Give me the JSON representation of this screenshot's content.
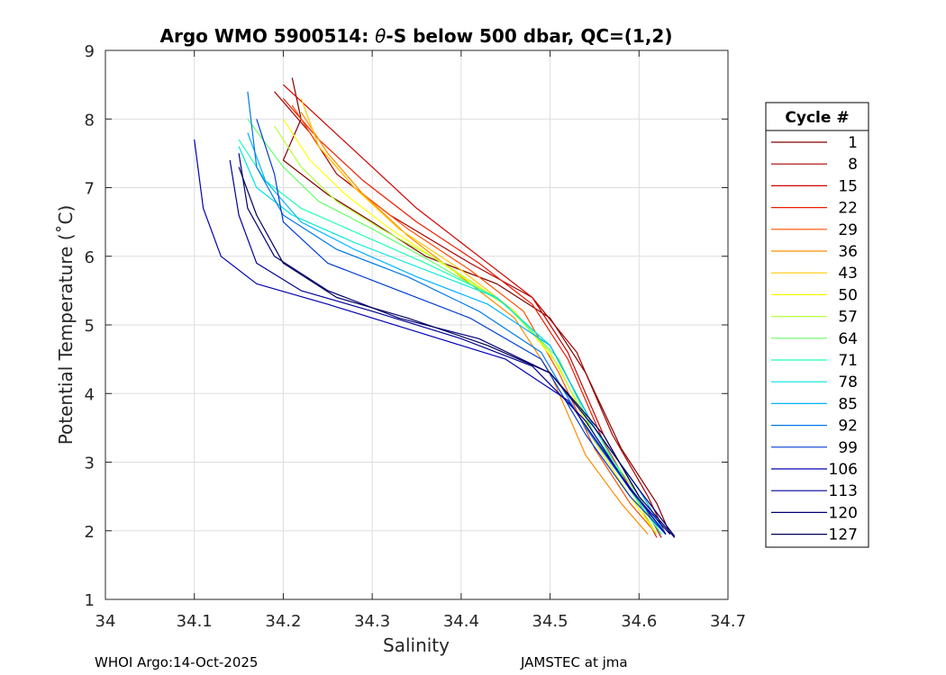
{
  "chart_data": {
    "type": "line",
    "title": "Argo WMO 5900514: θ-S below 500 dbar,  QC=(1,2)",
    "title_parts": {
      "prefix": "Argo WMO 5900514: ",
      "theta": "θ",
      "suffix": "-S below 500 dbar,  QC=(1,2)"
    },
    "xlabel": "Salinity",
    "ylabel": "Potential Temperature (˚C)",
    "xlim": [
      34.0,
      34.7
    ],
    "ylim": [
      1,
      9
    ],
    "xticks": [
      34.0,
      34.1,
      34.2,
      34.3,
      34.4,
      34.5,
      34.6,
      34.7
    ],
    "xtick_labels": [
      "34",
      "34.1",
      "34.2",
      "34.3",
      "34.4",
      "34.5",
      "34.6",
      "34.7"
    ],
    "yticks": [
      1,
      2,
      3,
      4,
      5,
      6,
      7,
      8,
      9
    ],
    "ytick_labels": [
      "1",
      "2",
      "3",
      "4",
      "5",
      "6",
      "7",
      "8",
      "9"
    ],
    "grid": true,
    "legend_title": "Cycle #",
    "legend_position": "right",
    "series": [
      {
        "name": "1",
        "color": "#800000",
        "x": [
          34.21,
          34.22,
          34.2,
          34.25,
          34.3,
          34.36,
          34.44,
          34.5,
          34.54,
          34.58,
          34.62,
          34.635
        ],
        "y": [
          8.6,
          8.0,
          7.4,
          6.9,
          6.5,
          6.0,
          5.6,
          5.1,
          4.3,
          3.2,
          2.4,
          1.95
        ]
      },
      {
        "name": "8",
        "color": "#a80000",
        "x": [
          34.19,
          34.23,
          34.26,
          34.32,
          34.41,
          34.48,
          34.53,
          34.57,
          34.61,
          34.63
        ],
        "y": [
          8.4,
          7.8,
          7.2,
          6.6,
          5.9,
          5.4,
          4.6,
          3.4,
          2.5,
          1.95
        ]
      },
      {
        "name": "15",
        "color": "#d00000",
        "x": [
          34.2,
          34.25,
          34.3,
          34.35,
          34.42,
          34.48,
          34.52,
          34.56,
          34.6,
          34.625
        ],
        "y": [
          8.5,
          7.9,
          7.3,
          6.7,
          6.0,
          5.4,
          4.6,
          3.4,
          2.5,
          1.9
        ]
      },
      {
        "name": "22",
        "color": "#f01c00",
        "x": [
          34.2,
          34.24,
          34.29,
          34.35,
          34.42,
          34.48,
          34.52,
          34.56,
          34.6,
          34.62
        ],
        "y": [
          8.3,
          7.7,
          7.1,
          6.5,
          5.9,
          5.3,
          4.5,
          3.3,
          2.4,
          1.9
        ]
      },
      {
        "name": "29",
        "color": "#ff5000",
        "x": [
          34.21,
          34.24,
          34.28,
          34.34,
          34.41,
          34.47,
          34.51,
          34.55,
          34.59,
          34.62
        ],
        "y": [
          8.2,
          7.6,
          7.0,
          6.4,
          5.8,
          5.2,
          4.3,
          3.2,
          2.4,
          1.95
        ]
      },
      {
        "name": "36",
        "color": "#ff8c00",
        "x": [
          34.22,
          34.25,
          34.29,
          34.34,
          34.4,
          34.46,
          34.5,
          34.54,
          34.58,
          34.61
        ],
        "y": [
          8.1,
          7.5,
          6.9,
          6.3,
          5.7,
          5.1,
          4.3,
          3.1,
          2.4,
          1.95
        ]
      },
      {
        "name": "43",
        "color": "#ffc800",
        "x": [
          34.22,
          34.24,
          34.28,
          34.33,
          34.4,
          34.46,
          34.51,
          34.55,
          34.59,
          34.62
        ],
        "y": [
          8.3,
          7.6,
          7.0,
          6.4,
          5.8,
          5.2,
          4.4,
          3.3,
          2.5,
          1.95
        ]
      },
      {
        "name": "50",
        "color": "#ffff00",
        "x": [
          34.2,
          34.23,
          34.27,
          34.32,
          34.39,
          34.46,
          34.51,
          34.55,
          34.59,
          34.62
        ],
        "y": [
          8.0,
          7.4,
          6.9,
          6.4,
          5.8,
          5.2,
          4.4,
          3.3,
          2.5,
          1.95
        ]
      },
      {
        "name": "57",
        "color": "#b4ff3c",
        "x": [
          34.19,
          34.22,
          34.26,
          34.31,
          34.38,
          34.45,
          34.5,
          34.55,
          34.59,
          34.62
        ],
        "y": [
          7.9,
          7.3,
          6.8,
          6.4,
          5.9,
          5.3,
          4.6,
          3.4,
          2.6,
          1.95
        ]
      },
      {
        "name": "64",
        "color": "#64ff64",
        "x": [
          34.16,
          34.2,
          34.24,
          34.3,
          34.37,
          34.45,
          34.51,
          34.55,
          34.6,
          34.625
        ],
        "y": [
          8.0,
          7.3,
          6.8,
          6.4,
          5.9,
          5.3,
          4.5,
          3.4,
          2.5,
          1.95
        ]
      },
      {
        "name": "71",
        "color": "#1effb4",
        "x": [
          34.15,
          34.18,
          34.22,
          34.29,
          34.36,
          34.44,
          34.5,
          34.55,
          34.59,
          34.625
        ],
        "y": [
          7.7,
          7.1,
          6.7,
          6.3,
          5.9,
          5.4,
          4.7,
          3.5,
          2.6,
          1.95
        ]
      },
      {
        "name": "78",
        "color": "#00e6dc",
        "x": [
          34.15,
          34.17,
          34.21,
          34.28,
          34.36,
          34.44,
          34.5,
          34.55,
          34.6,
          34.63
        ],
        "y": [
          7.6,
          7.0,
          6.6,
          6.2,
          5.8,
          5.4,
          4.7,
          3.5,
          2.6,
          1.95
        ]
      },
      {
        "name": "85",
        "color": "#00b4ff",
        "x": [
          34.16,
          34.18,
          34.22,
          34.28,
          34.35,
          34.43,
          34.5,
          34.55,
          34.6,
          34.63
        ],
        "y": [
          7.8,
          7.1,
          6.5,
          6.1,
          5.7,
          5.3,
          4.7,
          3.5,
          2.6,
          1.95
        ]
      },
      {
        "name": "92",
        "color": "#0078e6",
        "x": [
          34.16,
          34.17,
          34.2,
          34.26,
          34.34,
          34.42,
          34.49,
          34.54,
          34.59,
          34.63
        ],
        "y": [
          8.4,
          7.3,
          6.6,
          6.1,
          5.7,
          5.2,
          4.6,
          3.5,
          2.6,
          1.95
        ]
      },
      {
        "name": "99",
        "color": "#003cd2",
        "x": [
          34.17,
          34.19,
          34.2,
          34.25,
          34.33,
          34.41,
          34.49,
          34.54,
          34.59,
          34.63
        ],
        "y": [
          8.0,
          7.2,
          6.5,
          5.9,
          5.5,
          5.1,
          4.5,
          3.4,
          2.5,
          1.95
        ]
      },
      {
        "name": "106",
        "color": "#0000b4",
        "x": [
          34.1,
          34.11,
          34.13,
          34.17,
          34.25,
          34.35,
          34.45,
          34.52,
          34.58,
          34.63
        ],
        "y": [
          7.7,
          6.7,
          6.0,
          5.6,
          5.3,
          4.9,
          4.5,
          3.9,
          2.8,
          1.95
        ]
      },
      {
        "name": "113",
        "color": "#000096",
        "x": [
          34.14,
          34.15,
          34.17,
          34.22,
          34.3,
          34.4,
          34.48,
          34.54,
          34.59,
          34.635
        ],
        "y": [
          7.4,
          6.6,
          5.9,
          5.5,
          5.2,
          4.8,
          4.4,
          3.6,
          2.6,
          1.95
        ]
      },
      {
        "name": "120",
        "color": "#000078",
        "x": [
          34.15,
          34.16,
          34.19,
          34.25,
          34.33,
          34.42,
          34.5,
          34.55,
          34.6,
          34.64
        ],
        "y": [
          7.5,
          6.7,
          6.0,
          5.5,
          5.1,
          4.8,
          4.3,
          3.5,
          2.6,
          1.92
        ]
      },
      {
        "name": "127",
        "color": "#00005a",
        "x": [
          34.15,
          34.17,
          34.2,
          34.26,
          34.34,
          34.43,
          34.5,
          34.56,
          34.6,
          34.64
        ],
        "y": [
          7.3,
          6.6,
          5.9,
          5.4,
          5.1,
          4.7,
          4.3,
          3.4,
          2.5,
          1.9
        ]
      }
    ]
  },
  "footer": {
    "left": "WHOI Argo:14-Oct-2025",
    "right": "JAMSTEC at jma"
  }
}
